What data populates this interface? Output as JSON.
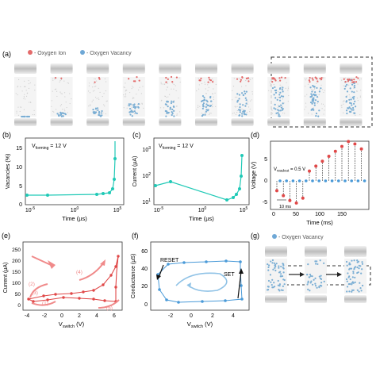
{
  "panels": {
    "a": {
      "letter": "(a)",
      "legend": [
        {
          "label": "- Oxygen Ion",
          "color": "#e46b6b"
        },
        {
          "label": "- Oxygen Vacancy",
          "color": "#6fa8d6"
        }
      ],
      "frames": 10
    },
    "b": {
      "letter": "(b)",
      "annotation": "V",
      "annotation_sub": "forming",
      "annotation_rest": " = 12 V",
      "xlabel": "Time (µs)",
      "ylabel": "Vacancies (%)",
      "yticks": [
        "0",
        "5",
        "10",
        "15"
      ],
      "xticks": [
        "10",
        "10",
        "10"
      ],
      "xtick_exp": [
        "-5",
        "0",
        "5"
      ]
    },
    "c": {
      "letter": "(c)",
      "annotation": "V",
      "annotation_sub": "forming",
      "annotation_rest": " = 12 V",
      "xlabel": "Time (µs)",
      "ylabel": "Current (µA)",
      "yticks": [
        "10",
        "10",
        "10"
      ],
      "ytick_exp": [
        "3",
        "2",
        "1"
      ],
      "xticks": [
        "10",
        "10",
        "10"
      ],
      "xtick_exp": [
        "-5",
        "0",
        "5"
      ]
    },
    "d": {
      "letter": "(d)",
      "xlabel": "Time (ms)",
      "ylabel": "Voltage (V)",
      "yticks": [
        "5",
        "0",
        "-5"
      ],
      "xticks": [
        "0",
        "50",
        "100",
        "150"
      ],
      "vread": "V",
      "vread_sub": "readout",
      "vread_rest": " = 0.5 V",
      "interval": "10 ms"
    },
    "e": {
      "letter": "(e)",
      "xlabel": "V",
      "xlabel_sub": "switch",
      "xlabel_rest": " (V)",
      "ylabel": "Current (µA)",
      "yticks": [
        "0",
        "50",
        "100",
        "150",
        "200",
        "250"
      ],
      "xticks": [
        "-4",
        "-2",
        "0",
        "2",
        "4",
        "6"
      ],
      "step_labels": [
        "(1)",
        "(2)",
        "(3)",
        "(4)",
        "(5)"
      ]
    },
    "f": {
      "letter": "(f)",
      "xlabel": "V",
      "xlabel_sub": "switch",
      "xlabel_rest": " (V)",
      "ylabel": "Conductance (µS)",
      "yticks": [
        "0",
        "20",
        "40",
        "60"
      ],
      "xticks": [
        "-2",
        "0",
        "2",
        "4"
      ],
      "reset_label": "RESET",
      "set_label": "SET"
    },
    "g": {
      "letter": "(g)",
      "legend": [
        {
          "label": "- Oxygen Vacancy",
          "color": "#6fa8d6"
        }
      ]
    }
  },
  "colors": {
    "teal": "#1fc9b6",
    "red": "#e04848",
    "blue": "#4a9ad8",
    "ion": "#e46b6b",
    "vacancy": "#7aaed4"
  }
}
